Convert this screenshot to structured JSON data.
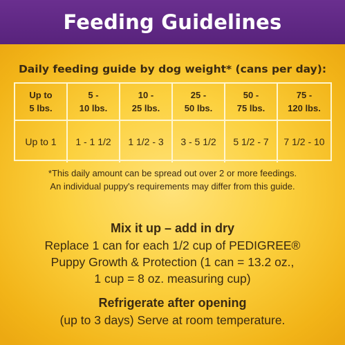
{
  "banner": {
    "title": "Feeding Guidelines"
  },
  "table": {
    "subtitle": "Daily feeding guide by dog weight* (cans per day):",
    "columns": [
      {
        "line1": "Up to",
        "line2": "5 lbs.",
        "amount": "Up to 1"
      },
      {
        "line1": "5 -",
        "line2": "10 lbs.",
        "amount": "1 - 1 1/2"
      },
      {
        "line1": "10 -",
        "line2": "25 lbs.",
        "amount": "1 1/2 - 3"
      },
      {
        "line1": "25 -",
        "line2": "50 lbs.",
        "amount": "3 - 5 1/2"
      },
      {
        "line1": "50 -",
        "line2": "75 lbs.",
        "amount": "5 1/2 - 7"
      },
      {
        "line1": "75 -",
        "line2": "120 lbs.",
        "amount": "7 1/2 - 10"
      }
    ]
  },
  "footnote": {
    "line1": "*This daily amount can be spread out over 2 or more feedings.",
    "line2": "An individual puppy's requirements may differ from this guide."
  },
  "mix": {
    "title": "Mix it up – add in dry",
    "line1": "Replace 1 can for each 1/2 cup of PEDIGREE®",
    "line2": "Puppy Growth & Protection (1 can = 13.2 oz.,",
    "line3": "1 cup = 8 oz. measuring cup)"
  },
  "refrigerate": {
    "title": "Refrigerate after opening",
    "line1": "(up to 3 days) Serve at room temperature."
  },
  "colors": {
    "banner_purple": "#5f2885",
    "background_yellow": "#fcd13f",
    "grid_lines": "#fff6d0",
    "text_brown": "#3a2a12"
  }
}
